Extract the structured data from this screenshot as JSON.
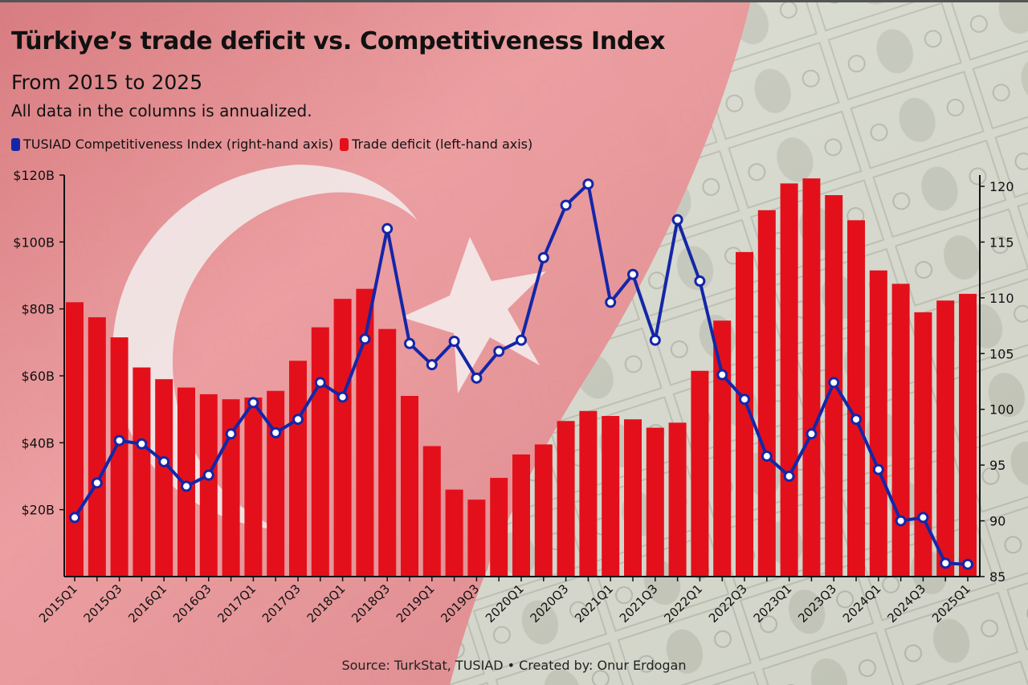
{
  "header": {
    "title": "Türkiye’s trade deficit vs. Competitiveness Index",
    "subtitle": "From 2015 to 2025",
    "note": "All data in the columns is annualized."
  },
  "legend": [
    {
      "label": "TUSIAD Competitiveness Index (right-hand axis)",
      "color": "#1426a8"
    },
    {
      "label": "Trade deficit (left-hand axis)",
      "color": "#e3101b"
    }
  ],
  "source": "Source: TurkStat, TUSIAD • Created by: Onur Erdogan",
  "colors": {
    "bar": "#e3101b",
    "line": "#1426a8",
    "flag_red": "#d9272e",
    "money": "#c9cbbd"
  },
  "chart_data": {
    "type": "bar+line",
    "x": [
      "2015Q1",
      "2015Q2",
      "2015Q3",
      "2015Q4",
      "2016Q1",
      "2016Q2",
      "2016Q3",
      "2016Q4",
      "2017Q1",
      "2017Q2",
      "2017Q3",
      "2017Q4",
      "2018Q1",
      "2018Q2",
      "2018Q3",
      "2018Q4",
      "2019Q1",
      "2019Q2",
      "2019Q3",
      "2019Q4",
      "2020Q1",
      "2020Q2",
      "2020Q3",
      "2020Q4",
      "2021Q1",
      "2021Q2",
      "2021Q3",
      "2021Q4",
      "2022Q1",
      "2022Q2",
      "2022Q3",
      "2022Q4",
      "2023Q1",
      "2023Q2",
      "2023Q3",
      "2023Q4",
      "2024Q1",
      "2024Q2",
      "2024Q3",
      "2024Q4",
      "2025Q1"
    ],
    "x_tick_labels": [
      "2015Q1",
      "2015Q3",
      "2016Q1",
      "2016Q3",
      "2017Q1",
      "2017Q3",
      "2018Q1",
      "2018Q3",
      "2019Q1",
      "2019Q3",
      "2020Q1",
      "2020Q3",
      "2021Q1",
      "2021Q3",
      "2022Q1",
      "2022Q3",
      "2023Q1",
      "2023Q3",
      "2024Q1",
      "2024Q3",
      "2025Q1"
    ],
    "series": [
      {
        "name": "Trade deficit (left-hand axis)",
        "type": "bar",
        "axis": "left",
        "values": [
          82,
          77.5,
          71.5,
          62.5,
          59,
          56.5,
          54.5,
          53,
          53.5,
          55.5,
          64.5,
          74.5,
          83,
          86,
          74,
          54,
          39,
          26,
          23,
          29.5,
          36.5,
          39.5,
          46.5,
          49.5,
          48,
          47,
          44.5,
          46,
          61.5,
          76.5,
          97,
          109.5,
          117.5,
          119,
          114,
          106.5,
          91.5,
          87.5,
          79,
          82.5,
          84.5
        ]
      },
      {
        "name": "TUSIAD Competitiveness Index (right-hand axis)",
        "type": "line",
        "axis": "right",
        "values": [
          90.3,
          93.4,
          97.2,
          96.9,
          95.3,
          93.1,
          94.1,
          97.8,
          100.6,
          97.9,
          99.1,
          102.4,
          101.1,
          106.3,
          116.2,
          105.9,
          104.0,
          106.1,
          102.8,
          105.2,
          106.2,
          113.6,
          118.3,
          120.2,
          109.6,
          112.1,
          106.2,
          117.0,
          111.5,
          103.1,
          100.9,
          95.8,
          94.0,
          97.8,
          102.4,
          99.1,
          94.6,
          90.0,
          90.3,
          86.2,
          86.1
        ]
      }
    ],
    "y_left": {
      "ticks": [
        "$20B",
        "$40B",
        "$60B",
        "$80B",
        "$100B",
        "$120B"
      ],
      "values": [
        20,
        40,
        60,
        80,
        100,
        120
      ],
      "range": [
        0,
        120
      ]
    },
    "y_right": {
      "ticks": [
        "85",
        "90",
        "95",
        "100",
        "105",
        "110",
        "115",
        "120"
      ],
      "values": [
        85,
        90,
        95,
        100,
        105,
        110,
        115,
        120
      ],
      "range": [
        85,
        121
      ]
    }
  }
}
